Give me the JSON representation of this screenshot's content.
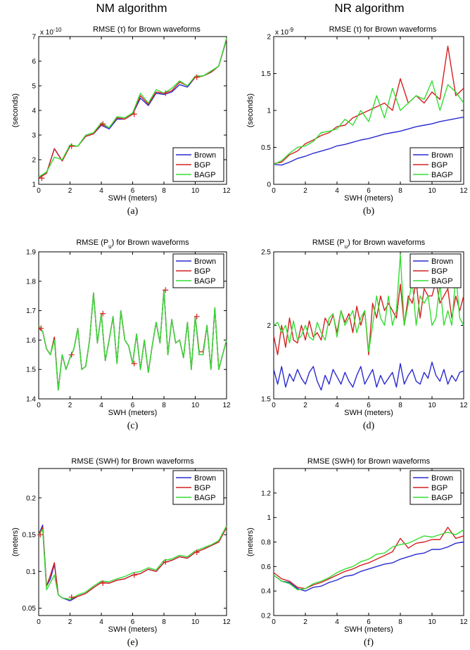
{
  "columns": [
    "NM algorithm",
    "NR algorithm"
  ],
  "colors": {
    "Brown": "#2a2ad0",
    "BGP": "#d42020",
    "BAGP": "#33dd33"
  },
  "chart_data": [
    {
      "type": "line",
      "title": "RMSE (τ) for Brown waveforms",
      "xlabel": "SWH (meters)",
      "ylabel": "(seconds)",
      "caption": "(a)",
      "exponent_base": "x 10",
      "exponent_power": "-10",
      "xlim": [
        0,
        12
      ],
      "ylim": [
        1,
        7
      ],
      "xticks": [
        0,
        2,
        4,
        6,
        8,
        10,
        12
      ],
      "yticks": [
        1,
        2,
        3,
        4,
        5,
        6,
        7
      ],
      "legend": "bottom-right",
      "x": [
        0,
        0.5,
        1,
        1.5,
        2,
        2.5,
        3,
        3.5,
        4,
        4.5,
        5,
        5.5,
        6,
        6.5,
        7,
        7.5,
        8,
        8.5,
        9,
        9.5,
        10,
        10.5,
        11,
        11.5,
        12
      ],
      "series": [
        {
          "name": "Brown",
          "values": [
            1.25,
            1.45,
            2.45,
            1.95,
            2.55,
            2.55,
            2.95,
            3.05,
            3.4,
            3.25,
            3.65,
            3.65,
            3.85,
            4.5,
            4.2,
            4.7,
            4.65,
            4.75,
            5.05,
            4.95,
            5.35,
            5.4,
            5.55,
            5.8,
            6.9
          ]
        },
        {
          "name": "BGP",
          "values": [
            1.25,
            1.45,
            2.45,
            1.95,
            2.55,
            2.55,
            2.95,
            3.05,
            3.45,
            3.3,
            3.7,
            3.65,
            3.85,
            4.6,
            4.25,
            4.75,
            4.7,
            4.8,
            5.15,
            5.0,
            5.35,
            5.4,
            5.55,
            5.8,
            6.9
          ]
        },
        {
          "name": "BAGP",
          "values": [
            1.3,
            1.5,
            2.1,
            2.0,
            2.6,
            2.55,
            3.0,
            3.1,
            3.5,
            3.3,
            3.75,
            3.7,
            3.9,
            4.7,
            4.3,
            4.85,
            4.7,
            4.9,
            5.2,
            5.0,
            5.4,
            5.4,
            5.6,
            5.8,
            6.95
          ]
        }
      ],
      "markers": {
        "x": [
          0.2,
          2.1,
          4.1,
          6.1,
          8.1,
          10.1
        ],
        "y": [
          1.25,
          2.55,
          3.45,
          3.85,
          4.7,
          5.35
        ]
      }
    },
    {
      "type": "line",
      "title": "RMSE (τ) for Brown waveforms",
      "xlabel": "SWH (meters)",
      "ylabel": "(seconds)",
      "caption": "(b)",
      "exponent_base": "x 10",
      "exponent_power": "-9",
      "xlim": [
        0,
        12
      ],
      "ylim": [
        0,
        2
      ],
      "xticks": [
        0,
        2,
        4,
        6,
        8,
        10,
        12
      ],
      "yticks": [
        0,
        0.5,
        1,
        1.5,
        2
      ],
      "legend": "bottom-right",
      "x": [
        0,
        0.5,
        1,
        1.5,
        2,
        2.5,
        3,
        3.5,
        4,
        4.5,
        5,
        5.5,
        6,
        6.5,
        7,
        7.5,
        8,
        8.5,
        9,
        9.5,
        10,
        10.5,
        11,
        11.5,
        12
      ],
      "series": [
        {
          "name": "Brown",
          "values": [
            0.27,
            0.26,
            0.3,
            0.35,
            0.38,
            0.42,
            0.45,
            0.48,
            0.52,
            0.54,
            0.57,
            0.6,
            0.62,
            0.65,
            0.68,
            0.7,
            0.72,
            0.75,
            0.78,
            0.8,
            0.82,
            0.85,
            0.87,
            0.89,
            0.91
          ]
        },
        {
          "name": "BGP",
          "values": [
            0.28,
            0.3,
            0.4,
            0.45,
            0.55,
            0.6,
            0.66,
            0.7,
            0.78,
            0.8,
            0.9,
            0.95,
            1.0,
            1.05,
            1.1,
            1.0,
            1.43,
            1.1,
            1.2,
            1.1,
            1.25,
            1.15,
            1.87,
            1.2,
            1.3
          ]
        },
        {
          "name": "BAGP",
          "values": [
            0.27,
            0.32,
            0.42,
            0.5,
            0.52,
            0.58,
            0.7,
            0.72,
            0.75,
            0.88,
            0.8,
            1.0,
            0.85,
            1.2,
            0.9,
            1.3,
            1.0,
            1.1,
            1.2,
            1.15,
            1.4,
            1.0,
            1.35,
            1.25,
            1.1
          ]
        }
      ]
    },
    {
      "type": "line",
      "title_main": "RMSE (P",
      "title_sub": "u",
      "title_rest": ") for Brown waveforms",
      "xlabel": "SWH (meters)",
      "ylabel": "",
      "caption": "(c)",
      "xlim": [
        0,
        12
      ],
      "ylim": [
        1.4,
        1.9
      ],
      "xticks": [
        0,
        2,
        4,
        6,
        8,
        10,
        12
      ],
      "yticks": [
        1.4,
        1.5,
        1.6,
        1.7,
        1.8,
        1.9
      ],
      "legend": "top-right",
      "x": [
        0,
        0.25,
        0.5,
        0.75,
        1,
        1.25,
        1.5,
        1.75,
        2,
        2.25,
        2.5,
        2.75,
        3,
        3.25,
        3.5,
        3.75,
        4,
        4.25,
        4.5,
        4.75,
        5,
        5.25,
        5.5,
        5.75,
        6,
        6.25,
        6.5,
        6.75,
        7,
        7.25,
        7.5,
        7.75,
        8,
        8.25,
        8.5,
        8.75,
        9,
        9.25,
        9.5,
        9.75,
        10,
        10.25,
        10.5,
        10.75,
        11,
        11.25,
        11.5,
        11.75,
        12
      ],
      "series": [
        {
          "name": "Brown",
          "values": [
            1.64,
            1.63,
            1.57,
            1.55,
            1.61,
            1.43,
            1.55,
            1.5,
            1.54,
            1.57,
            1.64,
            1.5,
            1.51,
            1.6,
            1.76,
            1.59,
            1.69,
            1.53,
            1.6,
            1.68,
            1.52,
            1.7,
            1.6,
            1.58,
            1.52,
            1.62,
            1.5,
            1.6,
            1.49,
            1.58,
            1.66,
            1.59,
            1.77,
            1.55,
            1.67,
            1.59,
            1.6,
            1.54,
            1.66,
            1.5,
            1.68,
            1.55,
            1.55,
            1.65,
            1.5,
            1.71,
            1.5,
            1.55,
            1.6
          ]
        },
        {
          "name": "BGP",
          "values": [
            1.64,
            1.63,
            1.57,
            1.55,
            1.61,
            1.43,
            1.55,
            1.5,
            1.54,
            1.57,
            1.64,
            1.5,
            1.51,
            1.6,
            1.76,
            1.59,
            1.69,
            1.53,
            1.6,
            1.68,
            1.52,
            1.7,
            1.6,
            1.58,
            1.52,
            1.62,
            1.5,
            1.6,
            1.49,
            1.58,
            1.66,
            1.59,
            1.77,
            1.55,
            1.67,
            1.59,
            1.6,
            1.54,
            1.66,
            1.5,
            1.68,
            1.56,
            1.56,
            1.65,
            1.5,
            1.71,
            1.5,
            1.55,
            1.6
          ]
        },
        {
          "name": "BAGP",
          "values": [
            1.65,
            1.63,
            1.57,
            1.55,
            1.6,
            1.43,
            1.55,
            1.5,
            1.54,
            1.57,
            1.64,
            1.5,
            1.51,
            1.6,
            1.76,
            1.59,
            1.69,
            1.53,
            1.6,
            1.68,
            1.52,
            1.7,
            1.6,
            1.58,
            1.52,
            1.62,
            1.5,
            1.6,
            1.49,
            1.58,
            1.66,
            1.59,
            1.77,
            1.55,
            1.67,
            1.59,
            1.6,
            1.54,
            1.66,
            1.5,
            1.68,
            1.55,
            1.55,
            1.65,
            1.5,
            1.71,
            1.5,
            1.55,
            1.6
          ]
        }
      ],
      "markers": {
        "x": [
          0.15,
          2.1,
          4.1,
          6.1,
          8.1,
          10.1
        ],
        "y": [
          1.64,
          1.55,
          1.69,
          1.52,
          1.77,
          1.68
        ]
      }
    },
    {
      "type": "line",
      "title_main": "RMSE (P",
      "title_sub": "u",
      "title_rest": ") for Brown waveforms",
      "xlabel": "SWH (meters)",
      "ylabel": "",
      "caption": "(d)",
      "xlim": [
        0,
        12
      ],
      "ylim": [
        1.5,
        2.5
      ],
      "xticks": [
        0,
        2,
        4,
        6,
        8,
        10,
        12
      ],
      "yticks": [
        1.5,
        2,
        2.5
      ],
      "legend": "top-right",
      "x": [
        0,
        0.25,
        0.5,
        0.75,
        1,
        1.25,
        1.5,
        1.75,
        2,
        2.25,
        2.5,
        2.75,
        3,
        3.25,
        3.5,
        3.75,
        4,
        4.25,
        4.5,
        4.75,
        5,
        5.25,
        5.5,
        5.75,
        6,
        6.25,
        6.5,
        6.75,
        7,
        7.25,
        7.5,
        7.75,
        8,
        8.25,
        8.5,
        8.75,
        9,
        9.25,
        9.5,
        9.75,
        10,
        10.25,
        10.5,
        10.75,
        11,
        11.25,
        11.5,
        11.75,
        12
      ],
      "series": [
        {
          "name": "Brown",
          "values": [
            1.7,
            1.6,
            1.72,
            1.58,
            1.67,
            1.62,
            1.7,
            1.64,
            1.6,
            1.68,
            1.72,
            1.62,
            1.56,
            1.66,
            1.6,
            1.7,
            1.65,
            1.6,
            1.68,
            1.62,
            1.58,
            1.66,
            1.72,
            1.6,
            1.65,
            1.7,
            1.58,
            1.66,
            1.6,
            1.64,
            1.68,
            1.58,
            1.74,
            1.6,
            1.66,
            1.7,
            1.62,
            1.6,
            1.68,
            1.64,
            1.75,
            1.66,
            1.62,
            1.7,
            1.6,
            1.66,
            1.62,
            1.68,
            1.69
          ]
        },
        {
          "name": "BGP",
          "values": [
            1.93,
            1.8,
            2.0,
            1.85,
            2.05,
            1.9,
            1.88,
            2.0,
            1.9,
            2.03,
            1.92,
            1.95,
            1.9,
            2.05,
            2.0,
            2.07,
            1.95,
            2.1,
            2.02,
            2.08,
            1.95,
            2.13,
            2.0,
            2.1,
            1.8,
            2.15,
            2.05,
            2.2,
            2.1,
            2.15,
            2.1,
            2.05,
            2.28,
            2.0,
            2.2,
            2.15,
            2.3,
            2.05,
            2.25,
            2.2,
            2.2,
            2.3,
            2.15,
            2.2,
            2.25,
            2.05,
            2.2,
            2.1,
            2.2
          ]
        },
        {
          "name": "BAGP",
          "values": [
            2.0,
            2.02,
            1.95,
            2.0,
            1.88,
            2.03,
            1.9,
            1.93,
            2.0,
            1.92,
            1.9,
            2.02,
            1.95,
            1.9,
            2.05,
            2.08,
            1.92,
            2.1,
            2.0,
            2.05,
            2.1,
            1.95,
            2.05,
            2.1,
            1.82,
            2.0,
            2.2,
            2.05,
            2.0,
            2.2,
            2.0,
            2.1,
            2.48,
            2.0,
            2.15,
            2.3,
            2.0,
            2.2,
            2.15,
            2.2,
            2.0,
            2.05,
            2.28,
            2.0,
            2.1,
            2.0,
            2.35,
            2.05,
            2.0
          ]
        }
      ]
    },
    {
      "type": "line",
      "title": "RMSE (SWH) for Brown waveforms",
      "xlabel": "SWH (meters)",
      "ylabel": "(meters)",
      "caption": "(e)",
      "xlim": [
        0,
        12
      ],
      "ylim": [
        0.04,
        0.24
      ],
      "xticks": [
        0,
        2,
        4,
        6,
        8,
        10,
        12
      ],
      "yticks": [
        0.05,
        0.1,
        0.15,
        0.2
      ],
      "legend": "top-right",
      "x": [
        0,
        0.25,
        0.5,
        0.75,
        1,
        1.25,
        1.5,
        2,
        2.5,
        3,
        3.5,
        4,
        4.5,
        5,
        5.5,
        6,
        6.5,
        7,
        7.5,
        8,
        8.5,
        9,
        9.5,
        10,
        10.5,
        11,
        11.5,
        12
      ],
      "series": [
        {
          "name": "Brown",
          "values": [
            0.15,
            0.163,
            0.08,
            0.09,
            0.11,
            0.068,
            0.064,
            0.06,
            0.066,
            0.07,
            0.078,
            0.085,
            0.084,
            0.088,
            0.09,
            0.095,
            0.097,
            0.103,
            0.1,
            0.112,
            0.115,
            0.12,
            0.118,
            0.126,
            0.13,
            0.135,
            0.14,
            0.16
          ]
        },
        {
          "name": "BGP",
          "values": [
            0.15,
            0.16,
            0.08,
            0.095,
            0.112,
            0.068,
            0.064,
            0.062,
            0.066,
            0.07,
            0.078,
            0.085,
            0.084,
            0.088,
            0.09,
            0.095,
            0.097,
            0.103,
            0.1,
            0.112,
            0.115,
            0.12,
            0.118,
            0.126,
            0.13,
            0.135,
            0.14,
            0.16
          ]
        },
        {
          "name": "BAGP",
          "values": [
            0.15,
            0.157,
            0.075,
            0.085,
            0.095,
            0.068,
            0.064,
            0.062,
            0.068,
            0.072,
            0.08,
            0.087,
            0.086,
            0.09,
            0.093,
            0.098,
            0.1,
            0.105,
            0.102,
            0.115,
            0.117,
            0.122,
            0.12,
            0.128,
            0.132,
            0.136,
            0.142,
            0.162
          ]
        }
      ],
      "markers": {
        "x": [
          0.1,
          2.1,
          4.1,
          6.1,
          8.1,
          10.1
        ],
        "y": [
          0.15,
          0.065,
          0.084,
          0.095,
          0.113,
          0.126
        ]
      }
    },
    {
      "type": "line",
      "title": "RMSE (SWH) for Brown waveforms",
      "xlabel": "SWH (meters)",
      "ylabel": "(meters)",
      "caption": "(f)",
      "xlim": [
        0,
        12
      ],
      "ylim": [
        0.2,
        1.4
      ],
      "xticks": [
        0,
        2,
        4,
        6,
        8,
        10,
        12
      ],
      "yticks": [
        0.2,
        0.4,
        0.6,
        0.8,
        1,
        1.2
      ],
      "legend": "top-right",
      "x": [
        0,
        0.5,
        1,
        1.5,
        2,
        2.5,
        3,
        3.5,
        4,
        4.5,
        5,
        5.5,
        6,
        6.5,
        7,
        7.5,
        8,
        8.5,
        9,
        9.5,
        10,
        10.5,
        11,
        11.5,
        12
      ],
      "series": [
        {
          "name": "Brown",
          "values": [
            0.53,
            0.48,
            0.47,
            0.42,
            0.4,
            0.43,
            0.44,
            0.47,
            0.49,
            0.52,
            0.53,
            0.56,
            0.58,
            0.6,
            0.62,
            0.63,
            0.66,
            0.68,
            0.7,
            0.71,
            0.74,
            0.74,
            0.76,
            0.79,
            0.8
          ]
        },
        {
          "name": "BGP",
          "values": [
            0.55,
            0.5,
            0.48,
            0.43,
            0.42,
            0.45,
            0.47,
            0.5,
            0.53,
            0.56,
            0.58,
            0.61,
            0.63,
            0.66,
            0.69,
            0.72,
            0.83,
            0.75,
            0.79,
            0.8,
            0.82,
            0.82,
            0.92,
            0.83,
            0.85
          ]
        },
        {
          "name": "BAGP",
          "values": [
            0.53,
            0.48,
            0.46,
            0.41,
            0.42,
            0.46,
            0.48,
            0.51,
            0.55,
            0.58,
            0.6,
            0.64,
            0.66,
            0.7,
            0.71,
            0.76,
            0.78,
            0.79,
            0.82,
            0.85,
            0.84,
            0.86,
            0.88,
            0.86,
            0.9
          ]
        }
      ]
    }
  ]
}
